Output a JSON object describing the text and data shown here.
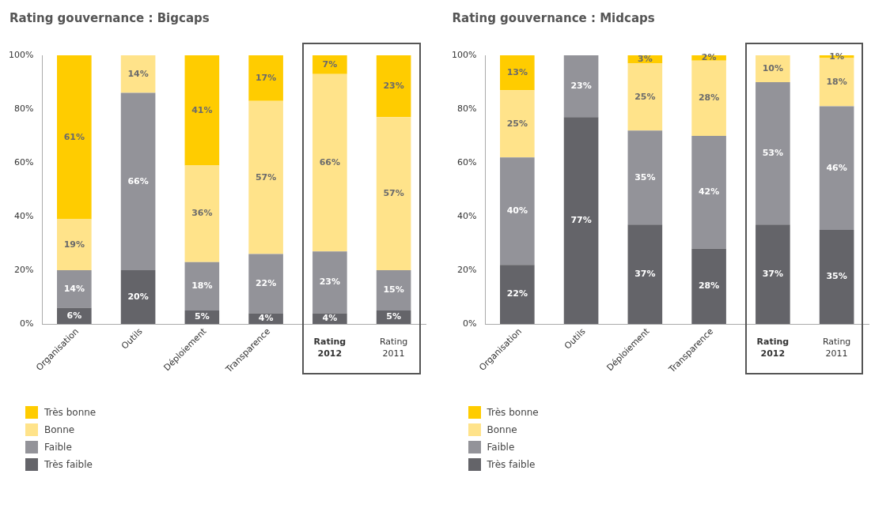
{
  "chart_data": [
    {
      "type": "bar",
      "title": "Rating gouvernance : Bigcaps",
      "stacked": true,
      "legend": "bottom left",
      "grid": false,
      "categories": [
        "Organisation",
        "Outils",
        "Déploiement",
        "Transparence",
        "Rating 2012",
        "Rating 2011"
      ],
      "ylim": [
        0,
        100
      ],
      "yticks": [
        {
          "value": 0,
          "label": "0%"
        },
        {
          "value": 20,
          "label": "20%"
        },
        {
          "value": 40,
          "label": "40%"
        },
        {
          "value": 60,
          "label": "60%"
        },
        {
          "value": 80,
          "label": "80%"
        },
        {
          "value": 100,
          "label": "100%"
        }
      ],
      "series": [
        {
          "name": "Très faible",
          "color": "#646469",
          "values": [
            6,
            20,
            5,
            4,
            4,
            5
          ],
          "value_labels": [
            "6%",
            "20%",
            "5%",
            "4%",
            "4%",
            "5%"
          ]
        },
        {
          "name": "Faible",
          "color": "#939399",
          "values": [
            14,
            66,
            18,
            22,
            23,
            15
          ],
          "value_labels": [
            "14%",
            "66%",
            "18%",
            "22%",
            "23%",
            "15%"
          ]
        },
        {
          "name": "Bonne",
          "color": "#ffe38a",
          "values": [
            19,
            14,
            36,
            57,
            66,
            57
          ],
          "value_labels": [
            "19%",
            "14%",
            "36%",
            "57%",
            "66%",
            "57%"
          ]
        },
        {
          "name": "Très bonne",
          "color": "#ffcc00",
          "values": [
            61,
            0,
            41,
            17,
            7,
            23
          ],
          "value_labels": [
            "61%",
            null,
            "41%",
            "17%",
            "7%",
            "23%"
          ]
        }
      ]
    },
    {
      "type": "bar",
      "title": "Rating gouvernance : Midcaps",
      "stacked": true,
      "legend": "bottom left",
      "grid": false,
      "categories": [
        "Organisation",
        "Outils",
        "Déploiement",
        "Transparence",
        "Rating 2012",
        "Rating 2011"
      ],
      "ylim": [
        0,
        100
      ],
      "yticks": [
        {
          "value": 0,
          "label": "0%"
        },
        {
          "value": 20,
          "label": "20%"
        },
        {
          "value": 40,
          "label": "40%"
        },
        {
          "value": 60,
          "label": "60%"
        },
        {
          "value": 80,
          "label": "80%"
        },
        {
          "value": 100,
          "label": "100%"
        }
      ],
      "series": [
        {
          "name": "Très faible",
          "color": "#646469",
          "values": [
            22,
            77,
            37,
            28,
            37,
            35
          ],
          "value_labels": [
            "22%",
            "77%",
            "37%",
            "28%",
            "37%",
            "35%"
          ]
        },
        {
          "name": "Faible",
          "color": "#939399",
          "values": [
            40,
            23,
            35,
            42,
            53,
            46
          ],
          "value_labels": [
            "40%",
            "23%",
            "35%",
            "42%",
            "53%",
            "46%"
          ]
        },
        {
          "name": "Bonne",
          "color": "#ffe38a",
          "values": [
            25,
            0,
            25,
            28,
            10,
            18
          ],
          "value_labels": [
            "25%",
            null,
            "25%",
            "28%",
            "10%",
            "18%"
          ]
        },
        {
          "name": "Très bonne",
          "color": "#ffcc00",
          "values": [
            13,
            0,
            3,
            2,
            0,
            1
          ],
          "value_labels": [
            "13%",
            null,
            "3%",
            "2%",
            null,
            "1%"
          ]
        }
      ]
    }
  ]
}
